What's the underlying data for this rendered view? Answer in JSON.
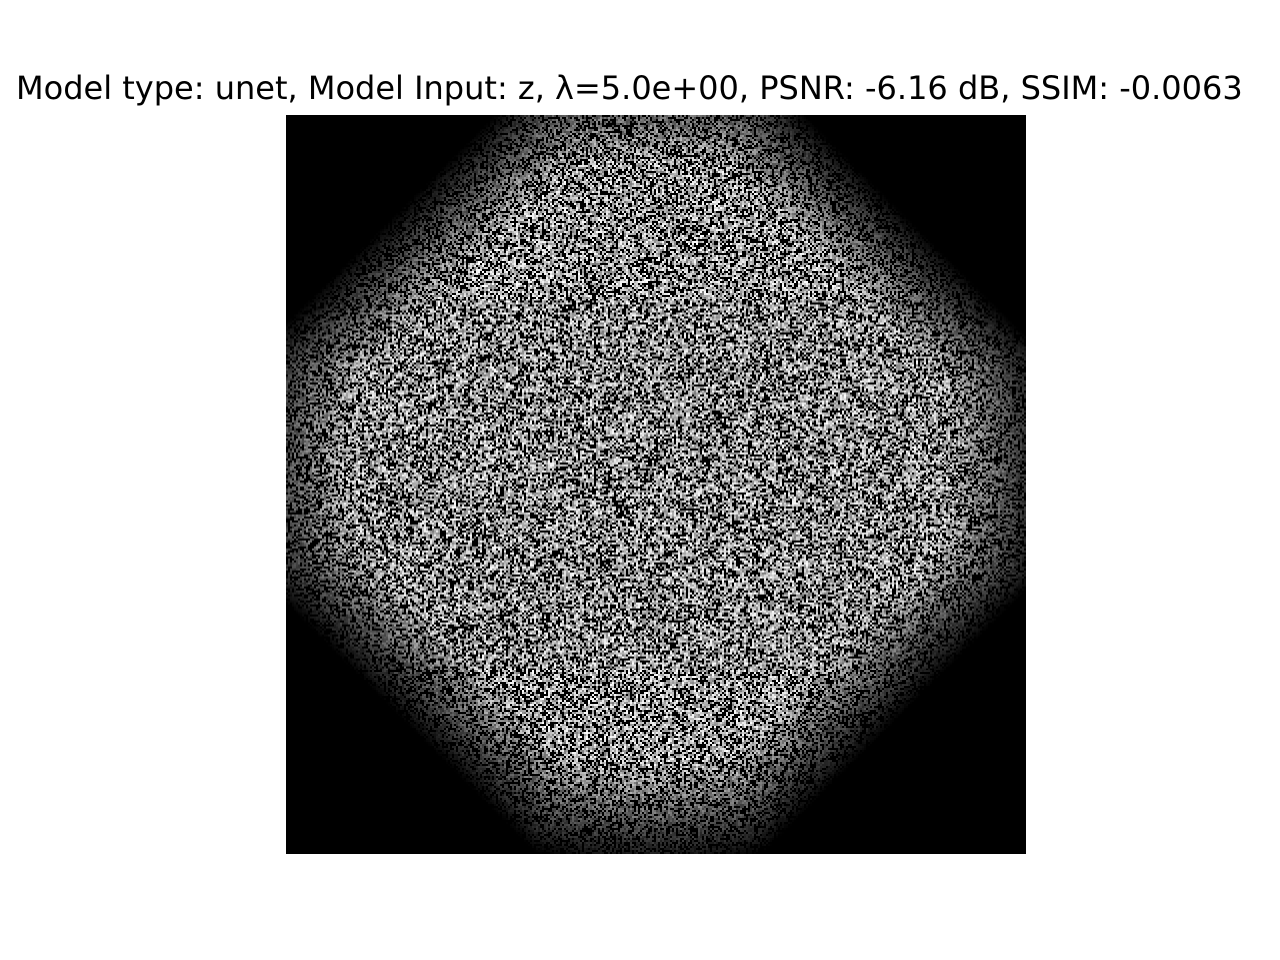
{
  "figure": {
    "title": "Model type: unet, Model Input: z, λ=5.0e+00, PSNR: -6.16 dB, SSIM: -0.0063"
  },
  "image": {
    "description_icon": "noise-reconstruction-image",
    "background_color": "#000000",
    "foreground_color": "#ffffff"
  }
}
